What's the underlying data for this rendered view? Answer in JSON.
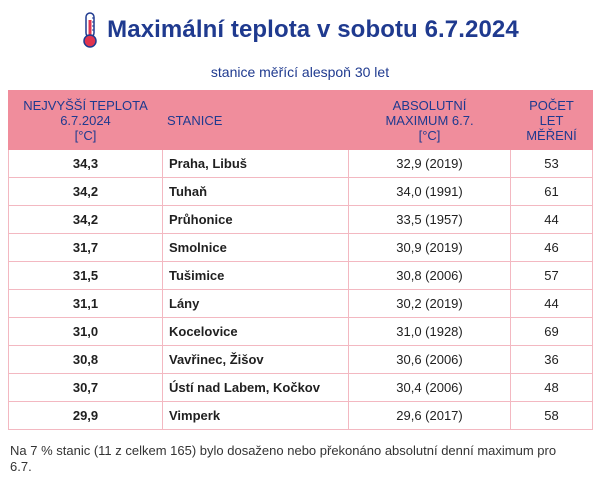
{
  "header": {
    "icon": "thermometer-icon",
    "title": "Maximální teplota v sobotu 6.7.2024",
    "subtitle": "stanice měřící alespoň 30 let"
  },
  "table": {
    "columns": [
      {
        "line1": "NEJVYŠŠÍ TEPLOTA",
        "line2": "6.7.2024",
        "line3": "[°C]"
      },
      {
        "line1": "STANICE"
      },
      {
        "line1": "ABSOLUTNÍ",
        "line2": "MAXIMUM 6.7.",
        "line3": "[°C]"
      },
      {
        "line1": "POČET",
        "line2": "LET",
        "line3": "MĚŘENÍ"
      }
    ],
    "rows": [
      {
        "max": "34,3",
        "station": "Praha, Libuš",
        "abs": "32,9 (2019)",
        "years": "53"
      },
      {
        "max": "34,2",
        "station": "Tuhaň",
        "abs": "34,0 (1991)",
        "years": "61"
      },
      {
        "max": "34,2",
        "station": "Průhonice",
        "abs": "33,5 (1957)",
        "years": "44"
      },
      {
        "max": "31,7",
        "station": "Smolnice",
        "abs": "30,9 (2019)",
        "years": "46"
      },
      {
        "max": "31,5",
        "station": "Tušimice",
        "abs": "30,8 (2006)",
        "years": "57"
      },
      {
        "max": "31,1",
        "station": "Lány",
        "abs": "30,2 (2019)",
        "years": "44"
      },
      {
        "max": "31,0",
        "station": "Kocelovice",
        "abs": "31,0 (1928)",
        "years": "69"
      },
      {
        "max": "30,8",
        "station": "Vavřinec, Žišov",
        "abs": "30,6 (2006)",
        "years": "36"
      },
      {
        "max": "30,7",
        "station": "Ústí nad Labem, Kočkov",
        "abs": "30,4 (2006)",
        "years": "48"
      },
      {
        "max": "29,9",
        "station": "Vimperk",
        "abs": "29,6 (2017)",
        "years": "58"
      }
    ]
  },
  "footnote": "Na 7 % stanic (11 z celkem 165) bylo dosaženo nebo překonáno absolutní denní maximum pro 6.7.",
  "colors": {
    "title": "#1f3a8f",
    "header_bg": "#f08d9c",
    "grid": "#f3b8c1",
    "thermometer": "#e0344f"
  }
}
